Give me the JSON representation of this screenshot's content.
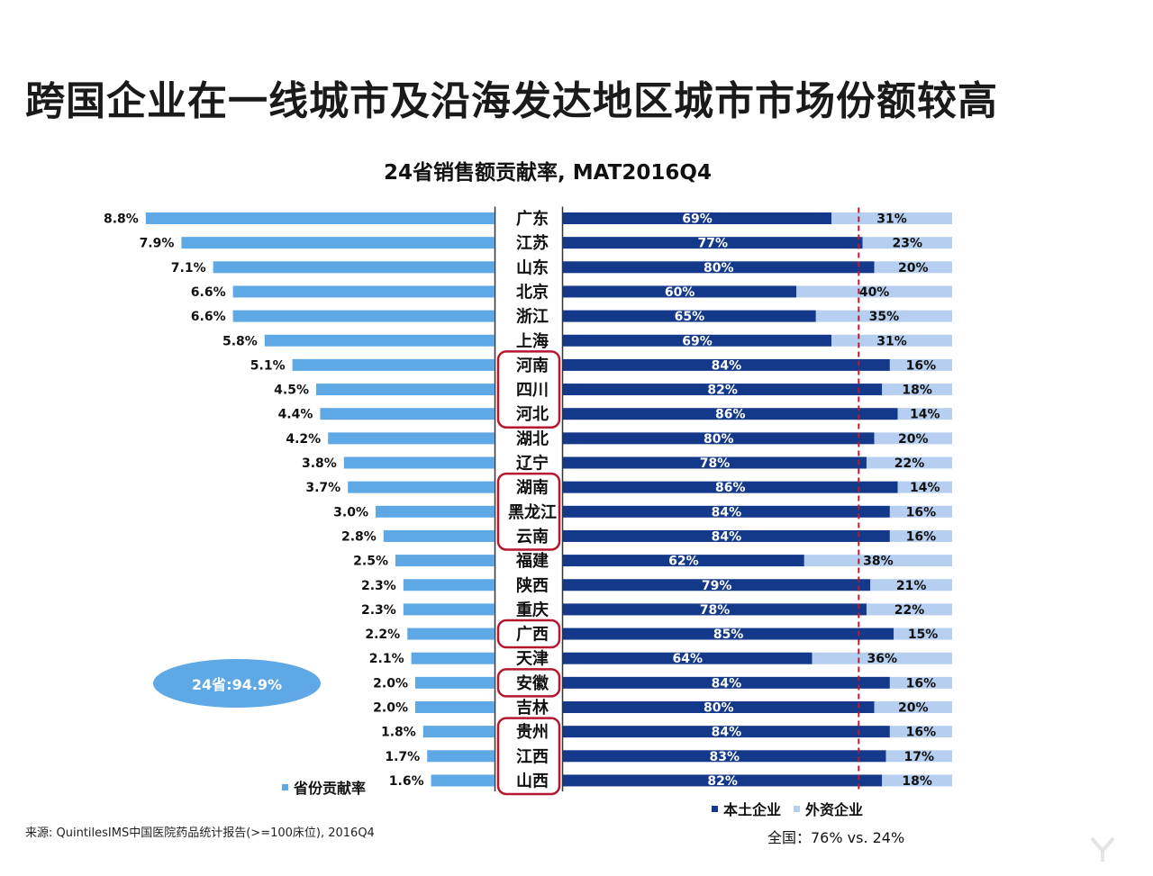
{
  "title": "跨国企业在一线城市及沿海发达地区城市市场份额较高",
  "chart_data": {
    "type": "bar",
    "title": "24省销售额贡献率, MAT2016Q4",
    "categories": [
      "广东",
      "江苏",
      "山东",
      "北京",
      "浙江",
      "上海",
      "河南",
      "四川",
      "河北",
      "湖北",
      "辽宁",
      "湖南",
      "黑龙江",
      "云南",
      "福建",
      "陕西",
      "重庆",
      "广西",
      "天津",
      "安徽",
      "吉林",
      "贵州",
      "江西",
      "山西"
    ],
    "series": [
      {
        "name": "省份贡献率",
        "values": [
          8.8,
          7.9,
          7.1,
          6.6,
          6.6,
          5.8,
          5.1,
          4.5,
          4.4,
          4.2,
          3.8,
          3.7,
          3.0,
          2.8,
          2.5,
          2.3,
          2.3,
          2.2,
          2.1,
          2.0,
          2.0,
          1.8,
          1.7,
          1.6
        ],
        "labels": [
          "8.8%",
          "7.9%",
          "7.1%",
          "6.6%",
          "6.6%",
          "5.8%",
          "5.1%",
          "4.5%",
          "4.4%",
          "4.2%",
          "3.8%",
          "3.7%",
          "3.0%",
          "2.8%",
          "2.5%",
          "2.3%",
          "2.3%",
          "2.2%",
          "2.1%",
          "2.0%",
          "2.0%",
          "1.8%",
          "1.7%",
          "1.6%"
        ],
        "color": "#5ea8e6"
      },
      {
        "name": "本土企业",
        "values": [
          69,
          77,
          80,
          60,
          65,
          69,
          84,
          82,
          86,
          80,
          78,
          86,
          84,
          84,
          62,
          79,
          78,
          85,
          64,
          84,
          80,
          84,
          83,
          82
        ],
        "labels": [
          "69%",
          "77%",
          "80%",
          "60%",
          "65%",
          "69%",
          "84%",
          "82%",
          "86%",
          "80%",
          "78%",
          "86%",
          "84%",
          "84%",
          "62%",
          "79%",
          "78%",
          "85%",
          "64%",
          "84%",
          "80%",
          "84%",
          "83%",
          "82%"
        ],
        "color": "#14398a"
      },
      {
        "name": "外资企业",
        "values": [
          31,
          23,
          20,
          40,
          35,
          31,
          16,
          18,
          14,
          20,
          22,
          14,
          16,
          16,
          38,
          21,
          22,
          15,
          36,
          16,
          20,
          16,
          17,
          18
        ],
        "labels": [
          "31%",
          "23%",
          "20%",
          "40%",
          "35%",
          "31%",
          "16%",
          "18%",
          "14%",
          "20%",
          "22%",
          "14%",
          "16%",
          "16%",
          "38%",
          "21%",
          "22%",
          "15%",
          "36%",
          "16%",
          "20%",
          "16%",
          "17%",
          "18%"
        ],
        "color": "#b6cff0"
      }
    ],
    "reference_line": {
      "value": 76,
      "color": "#c0182d",
      "style": "dashed"
    },
    "highlight_groups": [
      [
        "河南",
        "四川",
        "河北"
      ],
      [
        "湖南",
        "黑龙江",
        "云南"
      ],
      [
        "广西"
      ],
      [
        "安徽"
      ],
      [
        "贵州",
        "江西",
        "山西"
      ]
    ],
    "highlight_color": "#b5172e",
    "total_badge": {
      "text": "24省:94.9%",
      "color": "#5ea8e6"
    },
    "legend": {
      "left": [
        {
          "label": "省份贡献率",
          "color": "#5ea8e6"
        }
      ],
      "right": [
        {
          "label": "本土企业",
          "color": "#14398a"
        },
        {
          "label": "外资企业",
          "color": "#b6cff0"
        }
      ]
    },
    "grid": false
  },
  "footer": {
    "source": "来源: QuintilesIMS中国医院药品统计报告(>=100床位), 2016Q4",
    "national": "全国：76% vs. 24%"
  }
}
